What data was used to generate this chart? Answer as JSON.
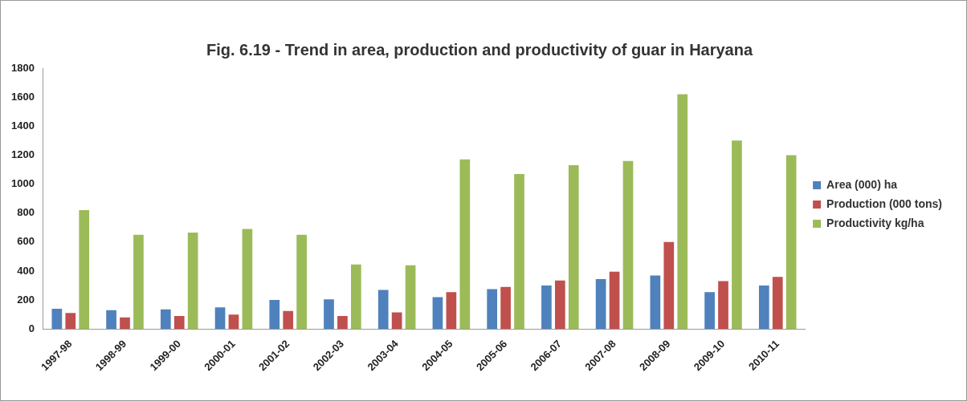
{
  "chart_data": {
    "type": "bar",
    "title": "Fig. 6.19 - Trend in area, production and productivity of guar in Haryana",
    "categories": [
      "1997-98",
      "1998-99",
      "1999-00",
      "2000-01",
      "2001-02",
      "2002-03",
      "2003-04",
      "2004-05",
      "2005-06",
      "2006-07",
      "2007-08",
      "2008-09",
      "2009-10",
      "2010-11"
    ],
    "series": [
      {
        "name": "Area (000) ha",
        "color": "#4f81bd",
        "values": [
          140,
          130,
          135,
          150,
          200,
          205,
          270,
          220,
          275,
          300,
          345,
          370,
          255,
          300
        ]
      },
      {
        "name": "Production (000 tons)",
        "color": "#c0504d",
        "values": [
          110,
          80,
          90,
          100,
          125,
          90,
          115,
          255,
          290,
          335,
          395,
          600,
          330,
          360
        ]
      },
      {
        "name": "Productivity kg/ha",
        "color": "#9bbb59",
        "values": [
          820,
          650,
          665,
          690,
          650,
          445,
          440,
          1170,
          1070,
          1130,
          1160,
          1620,
          1300,
          1200
        ]
      }
    ],
    "ylim": [
      0,
      1800
    ],
    "yticks": [
      0,
      200,
      400,
      600,
      800,
      1000,
      1200,
      1400,
      1600,
      1800
    ],
    "grid": false,
    "legend": "right"
  }
}
